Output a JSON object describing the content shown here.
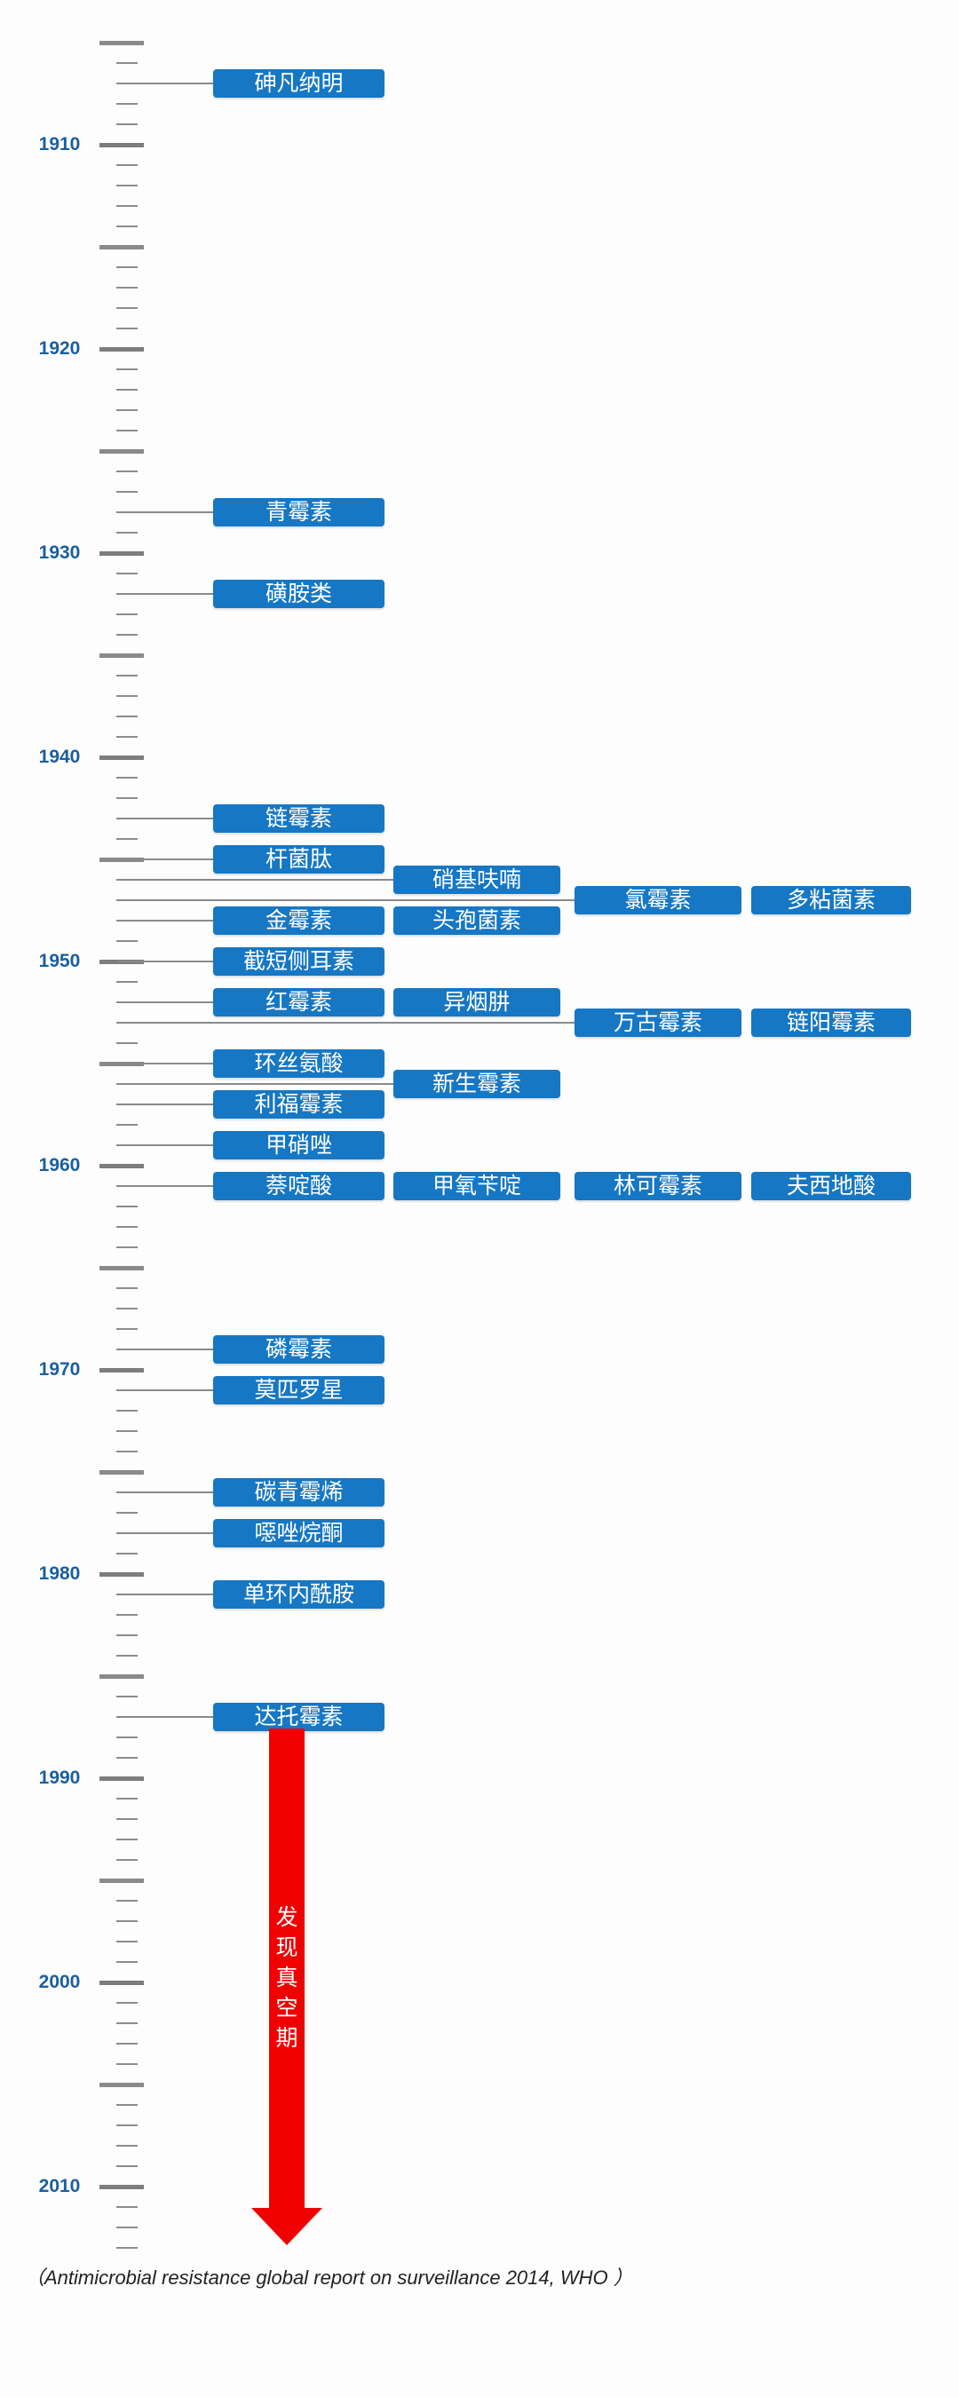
{
  "timeline": {
    "start_year": 1905,
    "end_year": 2013,
    "decade_labels": [
      "1910",
      "1920",
      "1930",
      "1940",
      "1950",
      "1960",
      "1970",
      "1980",
      "1990",
      "2000",
      "2010"
    ],
    "colors": {
      "box": "#1677c4",
      "arrow": "#f00000",
      "year_label": "#1a5e9e",
      "tick": "#8c8c8c"
    }
  },
  "drugs": [
    {
      "year": 1907,
      "names": [
        "砷凡纳明"
      ]
    },
    {
      "year": 1928,
      "names": [
        "青霉素"
      ]
    },
    {
      "year": 1932,
      "names": [
        "磺胺类"
      ]
    },
    {
      "year": 1943,
      "names": [
        "链霉素"
      ]
    },
    {
      "year": 1945,
      "names": [
        "杆菌肽"
      ]
    },
    {
      "year": 1946,
      "names": [
        "",
        "硝基呋喃"
      ]
    },
    {
      "year": 1947,
      "names": [
        "",
        "",
        "氯霉素",
        "多粘菌素"
      ]
    },
    {
      "year": 1948,
      "names": [
        "金霉素",
        "头孢菌素"
      ]
    },
    {
      "year": 1950,
      "names": [
        "截短侧耳素"
      ]
    },
    {
      "year": 1952,
      "names": [
        "红霉素",
        "异烟肼"
      ]
    },
    {
      "year": 1953,
      "names": [
        "",
        "",
        "万古霉素",
        "链阳霉素"
      ]
    },
    {
      "year": 1955,
      "names": [
        "环丝氨酸"
      ]
    },
    {
      "year": 1956,
      "names": [
        "",
        "新生霉素"
      ]
    },
    {
      "year": 1957,
      "names": [
        "利福霉素"
      ]
    },
    {
      "year": 1959,
      "names": [
        "甲硝唑"
      ]
    },
    {
      "year": 1961,
      "names": [
        "萘啶酸",
        "甲氧苄啶",
        "林可霉素",
        "夫西地酸"
      ]
    },
    {
      "year": 1969,
      "names": [
        "磷霉素"
      ]
    },
    {
      "year": 1971,
      "names": [
        "莫匹罗星"
      ]
    },
    {
      "year": 1976,
      "names": [
        "碳青霉烯"
      ]
    },
    {
      "year": 1978,
      "names": [
        "噁唑烷酮"
      ]
    },
    {
      "year": 1981,
      "names": [
        "单环内酰胺"
      ]
    },
    {
      "year": 1987,
      "names": [
        "达托霉素"
      ]
    }
  ],
  "arrow": {
    "label": [
      "发",
      "现",
      "真",
      "空",
      "期"
    ]
  },
  "source_note": "（Antimicrobial resistance global report on surveillance 2014, WHO ）"
}
